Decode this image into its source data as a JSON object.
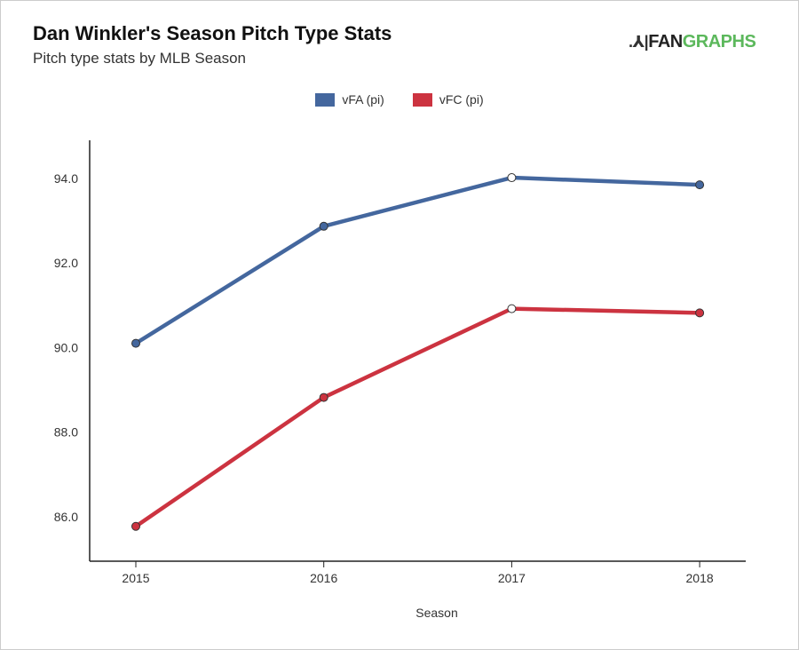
{
  "header": {
    "title": "Dan Winkler's Season Pitch Type Stats",
    "subtitle": "Pitch type stats by MLB Season",
    "logo_text_a": "FAN",
    "logo_text_b": "GRAPHS"
  },
  "chart_data": {
    "type": "line",
    "title": "Dan Winkler's Season Pitch Type Stats",
    "subtitle": "Pitch type stats by MLB Season",
    "xlabel": "Season",
    "ylabel": "",
    "x": [
      "2015",
      "2016",
      "2017",
      "2018"
    ],
    "yticks": [
      "86.0",
      "88.0",
      "90.0",
      "92.0",
      "94.0"
    ],
    "ylim": [
      84.95,
      94.9
    ],
    "grid": false,
    "legend_position": "top-center",
    "series": [
      {
        "name": "vFA (pi)",
        "color": "#44679e",
        "values": [
          90.1,
          92.87,
          94.02,
          93.85
        ]
      },
      {
        "name": "vFC (pi)",
        "color": "#cc3340",
        "values": [
          85.77,
          88.82,
          90.92,
          90.82
        ]
      }
    ]
  }
}
